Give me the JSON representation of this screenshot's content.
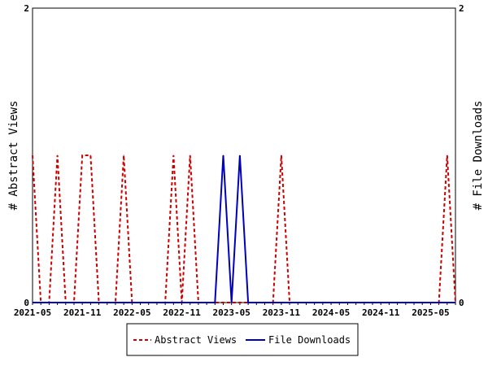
{
  "chart_data": {
    "type": "line",
    "title": "",
    "xlabel": "",
    "ylabel_left": "# Abstract Views",
    "ylabel_right": "# File Downloads",
    "ylim": [
      0,
      2
    ],
    "y_ticks_left": [
      "0",
      "2"
    ],
    "y_ticks_right": [
      "0",
      "2"
    ],
    "x_tick_labels": [
      "2021-05",
      "2021-11",
      "2022-05",
      "2022-11",
      "2023-05",
      "2023-11",
      "2024-05",
      "2024-11",
      "2025-05"
    ],
    "x": [
      "2021-05",
      "2021-06",
      "2021-07",
      "2021-08",
      "2021-09",
      "2021-10",
      "2021-11",
      "2021-12",
      "2022-01",
      "2022-02",
      "2022-03",
      "2022-04",
      "2022-05",
      "2022-06",
      "2022-07",
      "2022-08",
      "2022-09",
      "2022-10",
      "2022-11",
      "2022-12",
      "2023-01",
      "2023-02",
      "2023-03",
      "2023-04",
      "2023-05",
      "2023-06",
      "2023-07",
      "2023-08",
      "2023-09",
      "2023-10",
      "2023-11",
      "2023-12",
      "2024-01",
      "2024-02",
      "2024-03",
      "2024-04",
      "2024-05",
      "2024-06",
      "2024-07",
      "2024-08",
      "2024-09",
      "2024-10",
      "2024-11",
      "2024-12",
      "2025-01",
      "2025-02",
      "2025-03",
      "2025-04",
      "2025-05",
      "2025-06",
      "2025-07",
      "2025-08"
    ],
    "series": [
      {
        "name": "Abstract Views",
        "color": "#cc0000",
        "dash": true,
        "values": [
          1,
          0,
          0,
          1,
          0,
          0,
          1,
          1,
          0,
          0,
          0,
          1,
          0,
          0,
          0,
          0,
          0,
          1,
          0,
          1,
          0,
          0,
          0,
          0,
          0,
          0,
          0,
          0,
          0,
          0,
          1,
          0,
          0,
          0,
          0,
          0,
          0,
          0,
          0,
          0,
          0,
          0,
          0,
          0,
          0,
          0,
          0,
          0,
          0,
          0,
          1,
          0
        ]
      },
      {
        "name": "File Downloads",
        "color": "#0000bb",
        "dash": false,
        "values": [
          0,
          0,
          0,
          0,
          0,
          0,
          0,
          0,
          0,
          0,
          0,
          0,
          0,
          0,
          0,
          0,
          0,
          0,
          0,
          0,
          0,
          0,
          0,
          1,
          0,
          1,
          0,
          0,
          0,
          0,
          0,
          0,
          0,
          0,
          0,
          0,
          0,
          0,
          0,
          0,
          0,
          0,
          0,
          0,
          0,
          0,
          0,
          0,
          0,
          0,
          0,
          0
        ]
      }
    ],
    "legend": "bottom-center",
    "grid": false
  }
}
